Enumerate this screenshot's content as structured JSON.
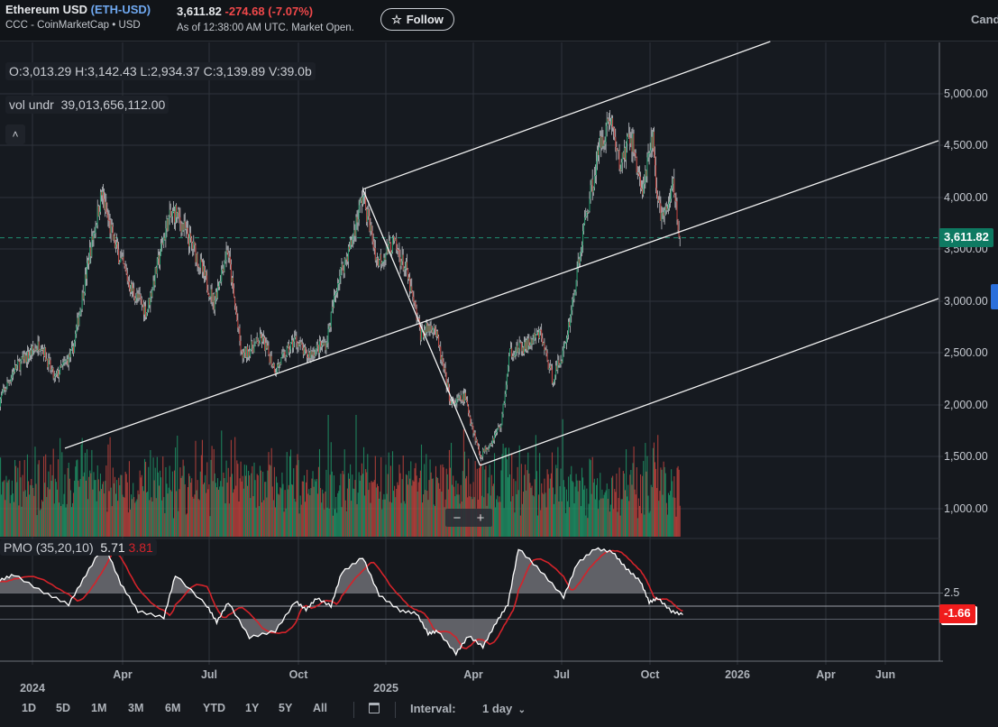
{
  "header": {
    "title": "Ethereum USD",
    "symbol": "(ETH-USD)",
    "source": "CCC - CoinMarketCap • USD",
    "price": "3,611.82",
    "change": "-274.68",
    "change_pct": "(-7.07%)",
    "as_of": "As of 12:38:00 AM UTC. Market Open.",
    "follow_label": "Follow",
    "follow_icon": "star-outline-icon",
    "chart_type_label": "Candle"
  },
  "legend": {
    "ohlcv": "O:3,013.29  H:3,142.43  L:2,934.37  C:3,139.89  V:39.0b",
    "vol_label": "vol undr",
    "vol_value": "39,013,656,112.00",
    "collapse_icon": "chevron-up-icon",
    "pmo_label": "PMO (35,20,10)",
    "pmo_value": "5.71",
    "pmo_signal": "3.81"
  },
  "zoom_controls": {
    "minus": "−",
    "plus": "+"
  },
  "price_axis": [
    "5,000.00",
    "4,500.00",
    "4,000.00",
    "3,500.00",
    "3,000.00",
    "2,500.00",
    "2,000.00",
    "1,500.00",
    "1,000.00"
  ],
  "pmo_axis": [
    "2.5"
  ],
  "current_price_badge": "3,611.82",
  "current_pmo_badge": "-1.66",
  "time_axis": {
    "months": [
      "Apr",
      "Jul",
      "Oct",
      "Apr",
      "Jul",
      "Oct",
      "Apr",
      "Jun"
    ],
    "years": [
      "2024",
      "2025",
      "2026"
    ]
  },
  "toolbar": {
    "ranges": [
      "1D",
      "5D",
      "1M",
      "3M",
      "6M",
      "YTD",
      "1Y",
      "5Y",
      "All"
    ],
    "calendar_icon": "calendar-icon",
    "interval_label": "Interval:",
    "interval_value": "1 day"
  },
  "colors": {
    "up": "#1f9a6a",
    "down": "#c8453f",
    "price_badge": "#0e7a62",
    "pmo_badge": "#f01c1c",
    "pmo_line": "#ffffff",
    "pmo_signal": "#d4232a",
    "accent": "#6fa8f0"
  },
  "chart_data": [
    {
      "type": "candlestick",
      "title": "",
      "y_scale": "linear",
      "ylim": [
        700,
        5500
      ],
      "xlim": [
        "2023-11-26",
        "2026-07-30"
      ],
      "grid": true,
      "last_close": 3611.82,
      "price_path": [
        [
          "2023-11-26",
          2035
        ],
        [
          "2023-12-11",
          2340
        ],
        [
          "2024-01-08",
          2600
        ],
        [
          "2024-01-22",
          2250
        ],
        [
          "2024-02-10",
          2510
        ],
        [
          "2024-02-28",
          3470
        ],
        [
          "2024-03-11",
          4035
        ],
        [
          "2024-03-23",
          3600
        ],
        [
          "2024-04-11",
          3120
        ],
        [
          "2024-04-27",
          2900
        ],
        [
          "2024-05-19",
          3770
        ],
        [
          "2024-05-27",
          3860
        ],
        [
          "2024-06-15",
          3510
        ],
        [
          "2024-07-06",
          2990
        ],
        [
          "2024-07-20",
          3510
        ],
        [
          "2024-08-04",
          2470
        ],
        [
          "2024-08-25",
          2640
        ],
        [
          "2024-09-08",
          2340
        ],
        [
          "2024-09-29",
          2640
        ],
        [
          "2024-10-10",
          2470
        ],
        [
          "2024-10-31",
          2600
        ],
        [
          "2024-11-12",
          3200
        ],
        [
          "2024-11-26",
          3560
        ],
        [
          "2024-12-08",
          4035
        ],
        [
          "2024-12-23",
          3380
        ],
        [
          "2025-01-09",
          3560
        ],
        [
          "2025-01-22",
          3300
        ],
        [
          "2025-02-06",
          2690
        ],
        [
          "2025-02-20",
          2775
        ],
        [
          "2025-03-10",
          2000
        ],
        [
          "2025-03-24",
          2080
        ],
        [
          "2025-04-09",
          1510
        ],
        [
          "2025-04-20",
          1640
        ],
        [
          "2025-05-01",
          1820
        ],
        [
          "2025-05-10",
          2510
        ],
        [
          "2025-05-26",
          2560
        ],
        [
          "2025-06-11",
          2690
        ],
        [
          "2025-06-23",
          2250
        ],
        [
          "2025-07-05",
          2510
        ],
        [
          "2025-07-15",
          3030
        ],
        [
          "2025-07-28",
          3820
        ],
        [
          "2025-08-13",
          4555
        ],
        [
          "2025-08-23",
          4775
        ],
        [
          "2025-09-01",
          4300
        ],
        [
          "2025-09-13",
          4600
        ],
        [
          "2025-09-25",
          4035
        ],
        [
          "2025-10-06",
          4600
        ],
        [
          "2025-10-11",
          3900
        ],
        [
          "2025-10-20",
          3820
        ],
        [
          "2025-10-27",
          4165
        ],
        [
          "2025-11-03",
          3611.82
        ]
      ],
      "trend_lines": [
        {
          "from": [
            "2024-12-08",
            4080
          ],
          "to": [
            "2026-02-05",
            5504
          ]
        },
        {
          "from": [
            "2024-02-02",
            1583
          ],
          "to": [
            "2026-07-30",
            4548
          ]
        },
        {
          "from": [
            "2025-04-09",
            1417
          ],
          "to": [
            "2026-07-30",
            3026
          ]
        },
        {
          "from": [
            "2024-12-08",
            4080
          ],
          "to": [
            "2025-04-09",
            1417
          ]
        }
      ]
    },
    {
      "type": "line",
      "title": "PMO (35,20,10)",
      "ylim": [
        -10,
        13
      ],
      "reference_levels": [
        2.5,
        0,
        -2.5
      ],
      "series": [
        {
          "values": [
            [
              "2023-11-26",
              4.9
            ],
            [
              "2023-12-11",
              6.0
            ],
            [
              "2024-01-11",
              2.6
            ],
            [
              "2024-02-06",
              0.3
            ],
            [
              "2024-02-24",
              6.0
            ],
            [
              "2024-03-14",
              11.9
            ],
            [
              "2024-03-31",
              4.3
            ],
            [
              "2024-04-18",
              -1.0
            ],
            [
              "2024-05-15",
              -2.2
            ],
            [
              "2024-05-27",
              5.9
            ],
            [
              "2024-06-29",
              0.0
            ],
            [
              "2024-07-09",
              -3.1
            ],
            [
              "2024-07-21",
              0.7
            ],
            [
              "2024-08-12",
              -6.0
            ],
            [
              "2024-09-08",
              -4.8
            ],
            [
              "2024-09-29",
              0.9
            ],
            [
              "2024-10-10",
              -0.7
            ],
            [
              "2024-10-21",
              1.5
            ],
            [
              "2024-11-05",
              0.0
            ],
            [
              "2024-11-16",
              6.4
            ],
            [
              "2024-12-08",
              9.3
            ],
            [
              "2024-12-25",
              2.1
            ],
            [
              "2025-01-16",
              -0.9
            ],
            [
              "2025-02-02",
              -1.4
            ],
            [
              "2025-02-14",
              -5.3
            ],
            [
              "2025-02-24",
              -4.8
            ],
            [
              "2025-03-15",
              -9.1
            ],
            [
              "2025-03-28",
              -5.7
            ],
            [
              "2025-04-12",
              -7.8
            ],
            [
              "2025-04-26",
              -3.1
            ],
            [
              "2025-05-08",
              0.3
            ],
            [
              "2025-05-19",
              11.0
            ],
            [
              "2025-06-11",
              6.7
            ],
            [
              "2025-07-05",
              1.7
            ],
            [
              "2025-07-19",
              8.1
            ],
            [
              "2025-08-07",
              11.0
            ],
            [
              "2025-08-25",
              10.3
            ],
            [
              "2025-09-08",
              7.2
            ],
            [
              "2025-09-23",
              4.7
            ],
            [
              "2025-10-02",
              0.7
            ],
            [
              "2025-10-11",
              1.5
            ],
            [
              "2025-10-25",
              -1.0
            ],
            [
              "2025-11-06",
              -1.66
            ]
          ]
        }
      ]
    }
  ]
}
